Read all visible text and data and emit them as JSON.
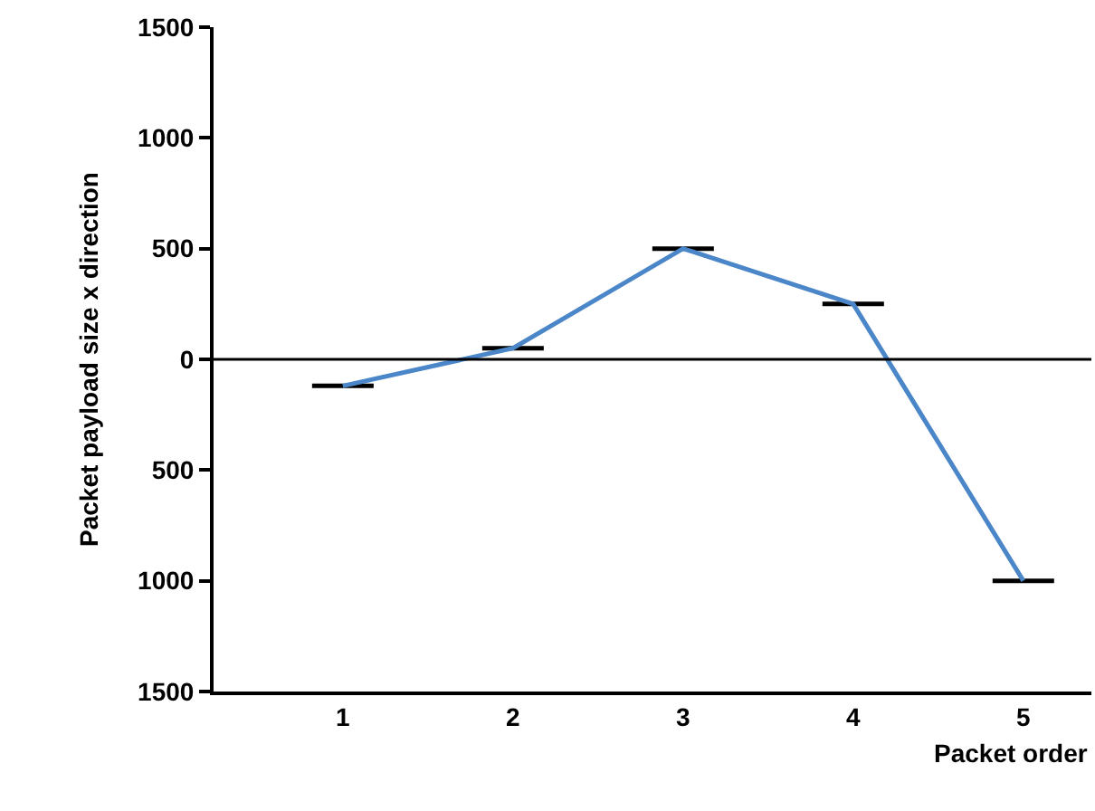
{
  "chart_data": {
    "type": "line",
    "xlabel": "Packet order",
    "ylabel": "Packet payload size x direction",
    "categories": [
      "1",
      "2",
      "3",
      "4",
      "5"
    ],
    "series": [
      {
        "color": "#4a86c8",
        "values": [
          -120,
          50,
          500,
          250,
          -1000
        ],
        "errors": [
          0,
          0,
          0,
          0,
          0
        ]
      }
    ],
    "ylim": [
      -1500,
      1500
    ],
    "yticks": [
      {
        "value": -1500,
        "label": "1500"
      },
      {
        "value": -1000,
        "label": "1000"
      },
      {
        "value": -500,
        "label": "500"
      },
      0,
      500,
      1000,
      1500
    ],
    "ref_lines": [
      {
        "axis": "y",
        "value": 0,
        "color": "#000000"
      }
    ],
    "line_style": "solid",
    "grid": false,
    "legend": false
  }
}
